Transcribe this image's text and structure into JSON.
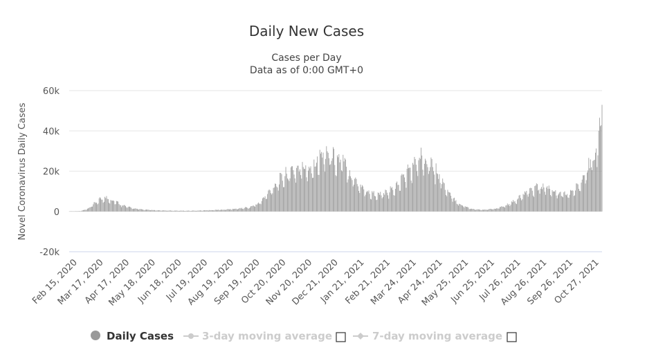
{
  "chart_data": {
    "type": "bar",
    "title": "Daily New Cases",
    "subtitle": [
      "Cases per Day",
      "Data as of 0:00 GMT+0"
    ],
    "ylabel": "Novel Coronavirus Daily Cases",
    "ylim": [
      -20000,
      60000
    ],
    "y_ticks": [
      -20000,
      0,
      20000,
      40000,
      60000
    ],
    "y_tick_labels": [
      "-20k",
      "0",
      "20k",
      "40k",
      "60k"
    ],
    "x_range": [
      "2020-02-15",
      "2021-11-18"
    ],
    "x_tick_labels": [
      "Feb 15, 2020",
      "Mar 17, 2020",
      "Apr 17, 2020",
      "May 18, 2020",
      "Jun 18, 2020",
      "Jul 19, 2020",
      "Aug 19, 2020",
      "Sep 19, 2020",
      "Oct 20, 2020",
      "Nov 20, 2020",
      "Dec 21, 2020",
      "Jan 21, 2021",
      "Feb 21, 2021",
      "Mar 24, 2021",
      "Apr 24, 2021",
      "May 25, 2021",
      "Jun 25, 2021",
      "Jul 26, 2021",
      "Aug 26, 2021",
      "Sep 26, 2021",
      "Oct 27, 2021"
    ],
    "grid": true,
    "bar_color": "#999999",
    "series": [
      {
        "name": "Daily Cases",
        "points": [
          [
            "2020-02-15",
            0
          ],
          [
            "2020-02-29",
            200
          ],
          [
            "2020-03-10",
            1500
          ],
          [
            "2020-03-17",
            4000
          ],
          [
            "2020-03-24",
            6000
          ],
          [
            "2020-03-31",
            6500
          ],
          [
            "2020-04-10",
            5000
          ],
          [
            "2020-04-17",
            3500
          ],
          [
            "2020-04-27",
            2000
          ],
          [
            "2020-05-07",
            1200
          ],
          [
            "2020-05-18",
            800
          ],
          [
            "2020-06-01",
            500
          ],
          [
            "2020-06-18",
            400
          ],
          [
            "2020-07-01",
            350
          ],
          [
            "2020-07-19",
            400
          ],
          [
            "2020-08-01",
            600
          ],
          [
            "2020-08-19",
            900
          ],
          [
            "2020-09-01",
            1200
          ],
          [
            "2020-09-19",
            2000
          ],
          [
            "2020-10-01",
            4000
          ],
          [
            "2020-10-10",
            8000
          ],
          [
            "2020-10-20",
            13000
          ],
          [
            "2020-10-31",
            17000
          ],
          [
            "2020-11-10",
            20000
          ],
          [
            "2020-11-20",
            21000
          ],
          [
            "2020-12-01",
            21000
          ],
          [
            "2020-12-10",
            25000
          ],
          [
            "2020-12-21",
            29000
          ],
          [
            "2020-12-31",
            26000
          ],
          [
            "2021-01-10",
            24000
          ],
          [
            "2021-01-21",
            17000
          ],
          [
            "2021-02-01",
            12000
          ],
          [
            "2021-02-10",
            9000
          ],
          [
            "2021-02-21",
            8000
          ],
          [
            "2021-03-05",
            9000
          ],
          [
            "2021-03-15",
            12000
          ],
          [
            "2021-03-24",
            17000
          ],
          [
            "2021-04-05",
            22000
          ],
          [
            "2021-04-15",
            27000
          ],
          [
            "2021-04-24",
            25000
          ],
          [
            "2021-05-05",
            18000
          ],
          [
            "2021-05-15",
            10000
          ],
          [
            "2021-05-25",
            5000
          ],
          [
            "2021-06-05",
            2500
          ],
          [
            "2021-06-15",
            1200
          ],
          [
            "2021-06-25",
            800
          ],
          [
            "2021-07-05",
            1000
          ],
          [
            "2021-07-15",
            1500
          ],
          [
            "2021-07-26",
            3000
          ],
          [
            "2021-08-05",
            5000
          ],
          [
            "2021-08-15",
            8000
          ],
          [
            "2021-08-26",
            11000
          ],
          [
            "2021-09-05",
            12000
          ],
          [
            "2021-09-15",
            11000
          ],
          [
            "2021-09-26",
            9000
          ],
          [
            "2021-10-05",
            8000
          ],
          [
            "2021-10-15",
            10000
          ],
          [
            "2021-10-27",
            15000
          ],
          [
            "2021-11-05",
            25000
          ],
          [
            "2021-11-12",
            30000
          ],
          [
            "2021-11-16",
            42000
          ],
          [
            "2021-11-18",
            50000
          ]
        ]
      },
      {
        "name": "3-day moving average"
      },
      {
        "name": "7-day moving average"
      }
    ],
    "legend_placement": "bottom-center"
  }
}
